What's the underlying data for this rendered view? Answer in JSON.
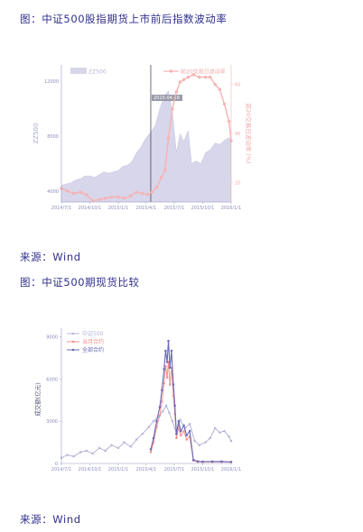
{
  "captions": {
    "figure1": "图：中证500股指期货上市前后指数波动率",
    "source1": "来源：Wind",
    "figure2": "图：中证500期现货比较",
    "source2": "来源：Wind"
  },
  "colors": {
    "area": "#d8d6ea",
    "vol": "#f6b3b3",
    "index2": "#b4b4d8",
    "current": "#f08f8f",
    "all": "#6a68b4",
    "axis": "#9a9ac8"
  },
  "chart_data": [
    {
      "type": "area",
      "x_ticks": [
        "2014/7/1",
        "2014/10/1",
        "2015/1/1",
        "2015/4/1",
        "2015/7/1",
        "2015/10/1",
        "2016/1/1"
      ],
      "ylabel": "ZZ500",
      "ylabel_right": "前20交易日波动率 (%)",
      "ylim": [
        3200,
        13200
      ],
      "y_ticks": [
        4000,
        8000,
        12000
      ],
      "y2lim": [
        12,
        68
      ],
      "y2_ticks": [
        20,
        40,
        60
      ],
      "vline_date": "2015/4/16",
      "annotation": "2015-04-16",
      "legend": [
        "ZZ500",
        "前20交易日波动率"
      ],
      "series": [
        {
          "name": "ZZ500",
          "axis": "left",
          "points": [
            [
              "2014/7/1",
              4400
            ],
            [
              "2014/7/15",
              4500
            ],
            [
              "2014/8/1",
              4600
            ],
            [
              "2014/8/15",
              4800
            ],
            [
              "2014/9/1",
              4900
            ],
            [
              "2014/9/15",
              5100
            ],
            [
              "2014/10/1",
              5100
            ],
            [
              "2014/10/15",
              5000
            ],
            [
              "2014/11/1",
              5200
            ],
            [
              "2014/11/15",
              5400
            ],
            [
              "2014/12/1",
              5300
            ],
            [
              "2014/12/15",
              5400
            ],
            [
              "2015/1/1",
              5500
            ],
            [
              "2015/1/15",
              5800
            ],
            [
              "2015/2/1",
              5900
            ],
            [
              "2015/2/15",
              6200
            ],
            [
              "2015/3/1",
              6800
            ],
            [
              "2015/3/15",
              7200
            ],
            [
              "2015/4/1",
              7900
            ],
            [
              "2015/4/16",
              8300
            ],
            [
              "2015/5/1",
              8800
            ],
            [
              "2015/5/15",
              10000
            ],
            [
              "2015/6/1",
              11000
            ],
            [
              "2015/6/12",
              11300
            ],
            [
              "2015/6/25",
              9800
            ],
            [
              "2015/7/8",
              6800
            ],
            [
              "2015/7/20",
              8200
            ],
            [
              "2015/8/1",
              7600
            ],
            [
              "2015/8/15",
              8400
            ],
            [
              "2015/8/26",
              6000
            ],
            [
              "2015/9/10",
              6200
            ],
            [
              "2015/9/25",
              6000
            ],
            [
              "2015/10/10",
              6800
            ],
            [
              "2015/10/25",
              7000
            ],
            [
              "2015/11/10",
              7500
            ],
            [
              "2015/11/25",
              7400
            ],
            [
              "2015/12/10",
              7700
            ],
            [
              "2015/12/25",
              7900
            ],
            [
              "2016/1/1",
              7700
            ]
          ]
        },
        {
          "name": "前20交易日波动率",
          "axis": "right",
          "points": [
            [
              "2014/7/1",
              17.5
            ],
            [
              "2014/7/20",
              16.5
            ],
            [
              "2014/8/10",
              15.5
            ],
            [
              "2014/9/1",
              16
            ],
            [
              "2014/9/20",
              15
            ],
            [
              "2014/10/10",
              12.5
            ],
            [
              "2014/11/1",
              13
            ],
            [
              "2014/11/20",
              13.5
            ],
            [
              "2014/12/10",
              14
            ],
            [
              "2015/1/1",
              14
            ],
            [
              "2015/1/20",
              13.5
            ],
            [
              "2015/2/10",
              14.5
            ],
            [
              "2015/3/1",
              16
            ],
            [
              "2015/3/20",
              15.5
            ],
            [
              "2015/4/5",
              15
            ],
            [
              "2015/4/20",
              16
            ],
            [
              "2015/5/5",
              18
            ],
            [
              "2015/5/20",
              22
            ],
            [
              "2015/6/1",
              25
            ],
            [
              "2015/6/12",
              38
            ],
            [
              "2015/6/25",
              50
            ],
            [
              "2015/7/8",
              57
            ],
            [
              "2015/7/20",
              61
            ],
            [
              "2015/8/1",
              62
            ],
            [
              "2015/8/15",
              63
            ],
            [
              "2015/9/1",
              64
            ],
            [
              "2015/9/20",
              63
            ],
            [
              "2015/10/10",
              63
            ],
            [
              "2015/10/25",
              63
            ],
            [
              "2015/11/10",
              60
            ],
            [
              "2015/11/25",
              58
            ],
            [
              "2015/12/10",
              52
            ],
            [
              "2015/12/25",
              45
            ],
            [
              "2016/1/1",
              37
            ]
          ]
        }
      ]
    },
    {
      "type": "line",
      "x_ticks": [
        "2014/7/1",
        "2014/10/1",
        "2015/1/1",
        "2015/4/1",
        "2015/7/1",
        "2015/10/1",
        "2016/1/1"
      ],
      "ylabel": "成交额(亿元)",
      "ylim": [
        0,
        9600
      ],
      "y_ticks": [
        0,
        3000,
        6000,
        9000
      ],
      "legend": [
        "中证500",
        "当月合约",
        "全部合约"
      ],
      "series": [
        {
          "name": "中证500",
          "points": [
            [
              "2014/7/1",
              400
            ],
            [
              "2014/7/20",
              600
            ],
            [
              "2014/8/10",
              500
            ],
            [
              "2014/9/1",
              800
            ],
            [
              "2014/9/20",
              900
            ],
            [
              "2014/10/10",
              700
            ],
            [
              "2014/11/1",
              1100
            ],
            [
              "2014/11/20",
              900
            ],
            [
              "2014/12/10",
              1300
            ],
            [
              "2015/1/1",
              1100
            ],
            [
              "2015/1/20",
              1500
            ],
            [
              "2015/2/10",
              1200
            ],
            [
              "2015/3/1",
              1700
            ],
            [
              "2015/3/20",
              2100
            ],
            [
              "2015/4/10",
              2600
            ],
            [
              "2015/4/25",
              3000
            ],
            [
              "2015/5/10",
              3300
            ],
            [
              "2015/5/25",
              3700
            ],
            [
              "2015/6/5",
              4100
            ],
            [
              "2015/6/15",
              3600
            ],
            [
              "2015/6/25",
              3000
            ],
            [
              "2015/7/8",
              2100
            ],
            [
              "2015/7/20",
              3100
            ],
            [
              "2015/8/5",
              2500
            ],
            [
              "2015/8/20",
              2800
            ],
            [
              "2015/9/5",
              1600
            ],
            [
              "2015/9/20",
              1300
            ],
            [
              "2015/10/10",
              1500
            ],
            [
              "2015/10/25",
              1800
            ],
            [
              "2015/11/10",
              2500
            ],
            [
              "2015/11/25",
              2200
            ],
            [
              "2015/12/10",
              2300
            ],
            [
              "2015/12/25",
              1900
            ],
            [
              "2016/1/1",
              1600
            ]
          ]
        },
        {
          "name": "当月合约",
          "points": [
            [
              "2015/4/16",
              800
            ],
            [
              "2015/4/25",
              1500
            ],
            [
              "2015/5/5",
              2600
            ],
            [
              "2015/5/15",
              3400
            ],
            [
              "2015/5/22",
              4400
            ],
            [
              "2015/5/29",
              5700
            ],
            [
              "2015/6/3",
              6900
            ],
            [
              "2015/6/8",
              6100
            ],
            [
              "2015/6/12",
              7200
            ],
            [
              "2015/6/17",
              5600
            ],
            [
              "2015/6/22",
              6800
            ],
            [
              "2015/6/28",
              4800
            ],
            [
              "2015/7/3",
              3500
            ],
            [
              "2015/7/8",
              1800
            ],
            [
              "2015/7/15",
              2600
            ],
            [
              "2015/7/22",
              2000
            ],
            [
              "2015/8/1",
              2300
            ],
            [
              "2015/8/10",
              1700
            ],
            [
              "2015/8/20",
              1900
            ],
            [
              "2015/9/1",
              200
            ],
            [
              "2015/9/15",
              120
            ],
            [
              "2015/10/1",
              100
            ],
            [
              "2015/11/1",
              110
            ],
            [
              "2015/12/1",
              110
            ],
            [
              "2016/1/1",
              90
            ]
          ]
        },
        {
          "name": "全部合约",
          "points": [
            [
              "2015/4/16",
              1000
            ],
            [
              "2015/4/25",
              1800
            ],
            [
              "2015/5/5",
              3000
            ],
            [
              "2015/5/15",
              4000
            ],
            [
              "2015/5/22",
              5200
            ],
            [
              "2015/5/29",
              6700
            ],
            [
              "2015/6/3",
              8000
            ],
            [
              "2015/6/8",
              7200
            ],
            [
              "2015/6/12",
              8700
            ],
            [
              "2015/6/17",
              6800
            ],
            [
              "2015/6/22",
              8000
            ],
            [
              "2015/6/28",
              5600
            ],
            [
              "2015/7/3",
              4100
            ],
            [
              "2015/7/8",
              2100
            ],
            [
              "2015/7/15",
              3000
            ],
            [
              "2015/7/22",
              2300
            ],
            [
              "2015/8/1",
              2700
            ],
            [
              "2015/8/10",
              2000
            ],
            [
              "2015/8/20",
              2300
            ],
            [
              "2015/9/1",
              250
            ],
            [
              "2015/9/15",
              150
            ],
            [
              "2015/10/1",
              130
            ],
            [
              "2015/11/1",
              140
            ],
            [
              "2015/12/1",
              140
            ],
            [
              "2016/1/1",
              110
            ]
          ]
        }
      ]
    }
  ]
}
